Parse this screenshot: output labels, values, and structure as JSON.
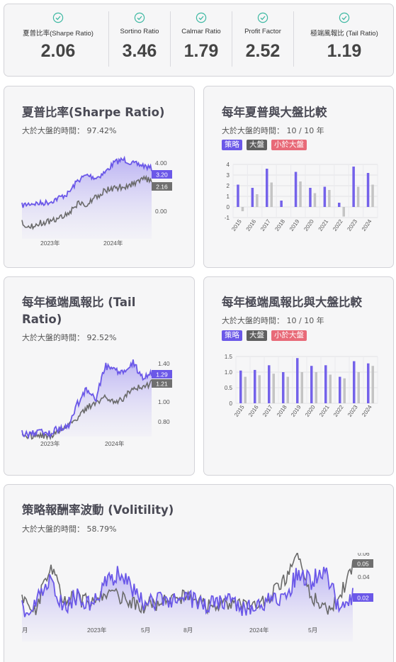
{
  "metrics": [
    {
      "label": "夏普比率(Sharpe Ratio)",
      "value": "2.06"
    },
    {
      "label": "Sortino Ratio",
      "value": "3.46"
    },
    {
      "label": "Calmar Ratio",
      "value": "1.79"
    },
    {
      "label": "Profit Factor",
      "value": "2.52"
    },
    {
      "label": "極端風報比 (Tail Ratio)",
      "value": "1.19"
    }
  ],
  "colors": {
    "strategy": "#6b58e8",
    "market": "#6f6f6f",
    "below": "#e86a78",
    "market_bar": "#c4c4c4"
  },
  "icons": {
    "metric_check": "check-circle-icon"
  },
  "sharpe": {
    "title": "夏普比率(Sharpe Ratio)",
    "subtitle": "大於大盤的時間： 97.42%",
    "chart_data": {
      "type": "area",
      "y_ticks": [
        "4.00",
        "0.00"
      ],
      "x_ticks": [
        "2023年",
        "2024年"
      ],
      "end_labels": {
        "strategy": "3.20",
        "market": "2.16"
      }
    }
  },
  "sharpe_cmp": {
    "title": "每年夏普與大盤比較",
    "subtitle": "大於大盤的時間： 10 / 10 年",
    "legend": [
      "策略",
      "大盤",
      "小於大盤"
    ],
    "chart_data": {
      "type": "bar",
      "categories": [
        "2015",
        "2016",
        "2017",
        "2018",
        "2019",
        "2020",
        "2021",
        "2022",
        "2023",
        "2024"
      ],
      "series": [
        {
          "name": "策略",
          "values": [
            2.1,
            1.8,
            3.6,
            0.6,
            3.3,
            1.8,
            1.9,
            0.4,
            3.8,
            3.2
          ]
        },
        {
          "name": "大盤",
          "values": [
            -0.4,
            1.2,
            2.3,
            0.0,
            2.4,
            1.3,
            1.6,
            -0.9,
            1.9,
            2.1
          ]
        }
      ],
      "y_ticks": [
        "4",
        "3",
        "2",
        "1",
        "0",
        "-1"
      ],
      "ylim": [
        -1,
        4
      ]
    }
  },
  "tail": {
    "title": "每年極端風報比 (Tail Ratio)",
    "subtitle": "大於大盤的時間： 92.52%",
    "chart_data": {
      "type": "area",
      "y_ticks": [
        "1.40",
        "1.00",
        "0.80"
      ],
      "x_ticks": [
        "2023年",
        "2024年"
      ],
      "end_labels": {
        "strategy": "1.29",
        "market": "1.21"
      }
    }
  },
  "tail_cmp": {
    "title": "每年極端風報比與大盤比較",
    "subtitle": "大於大盤的時間： 10 / 10 年",
    "legend": [
      "策略",
      "大盤",
      "小於大盤"
    ],
    "chart_data": {
      "type": "bar",
      "categories": [
        "2015",
        "2016",
        "2017",
        "2018",
        "2019",
        "2020",
        "2021",
        "2022",
        "2023",
        "2024"
      ],
      "series": [
        {
          "name": "策略",
          "values": [
            1.05,
            1.07,
            1.22,
            1.0,
            1.45,
            1.2,
            1.22,
            0.85,
            1.35,
            1.28
          ]
        },
        {
          "name": "大盤",
          "values": [
            0.85,
            0.9,
            0.95,
            0.85,
            1.0,
            1.0,
            0.92,
            0.8,
            1.0,
            1.2
          ]
        }
      ],
      "y_ticks": [
        "1.5",
        "1.0",
        "0.5",
        "0"
      ],
      "ylim": [
        0,
        1.5
      ]
    }
  },
  "vol": {
    "title": "策略報酬率波動 (Volitility)",
    "subtitle": "大於大盤的時間： 58.79%",
    "chart_data": {
      "type": "area",
      "y_ticks": [
        "0.06",
        "0.04",
        "0.02"
      ],
      "x_ticks": [
        "月",
        "2023年",
        "5月",
        "8月",
        "2024年",
        "5月"
      ],
      "end_labels": {
        "strategy": "0.02",
        "market": "0.05"
      }
    }
  }
}
